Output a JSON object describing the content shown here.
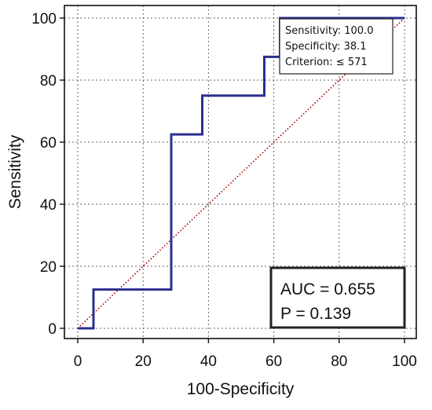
{
  "chart_data": {
    "type": "line",
    "title": "",
    "xlabel": "100-Specificity",
    "ylabel": "Sensitivity",
    "xlim": [
      0,
      100
    ],
    "ylim": [
      0,
      100
    ],
    "xticks": [
      0,
      20,
      40,
      60,
      80,
      100
    ],
    "yticks": [
      0,
      20,
      40,
      60,
      80,
      100
    ],
    "grid": true,
    "series": [
      {
        "color": "#2b2f8f",
        "style": "step",
        "x": [
          0,
          4.8,
          4.8,
          28.6,
          28.6,
          38.1,
          38.1,
          57.1,
          57.1,
          61.9,
          61.9,
          100
        ],
        "y": [
          0,
          0,
          12.5,
          12.5,
          62.5,
          62.5,
          75,
          75,
          87.5,
          87.5,
          100,
          100
        ]
      },
      {
        "color": "#a00000",
        "style": "dotted",
        "x": [
          0,
          100
        ],
        "y": [
          0,
          100
        ]
      }
    ],
    "annotations": {
      "criterion_box": [
        "Sensitivity: 100.0",
        "Specificity: 38.1",
        "Criterion: ≤ 571"
      ],
      "auc_box": [
        "AUC = 0.655",
        "P = 0.139"
      ]
    }
  }
}
